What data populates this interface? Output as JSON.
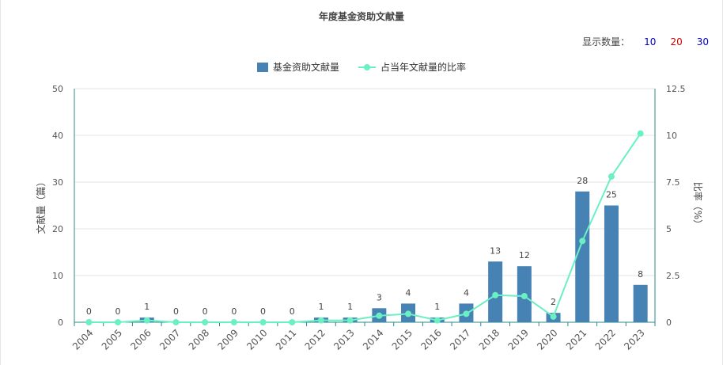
{
  "title": "年度基金资助文献量",
  "count_selector": {
    "label": "显示数量：",
    "options": [
      {
        "label": "10",
        "color": "#0000cc"
      },
      {
        "label": "20",
        "color": "#cc0000"
      },
      {
        "label": "30",
        "color": "#0000cc"
      }
    ]
  },
  "legend": [
    {
      "label": "基金资助文献量",
      "color": "#4682b4"
    },
    {
      "label": "占当年文献量的比率",
      "color": "#6bf0c4"
    }
  ],
  "chart_data": {
    "type": "bar",
    "categories": [
      "2004",
      "2005",
      "2006",
      "2007",
      "2008",
      "2009",
      "2010",
      "2011",
      "2012",
      "2013",
      "2014",
      "2015",
      "2016",
      "2017",
      "2018",
      "2019",
      "2020",
      "2021",
      "2022",
      "2023"
    ],
    "series": [
      {
        "name": "基金资助文献量",
        "type": "bar",
        "axis": "left",
        "color": "#4682b4",
        "values": [
          0,
          0,
          1,
          0,
          0,
          0,
          0,
          0,
          1,
          1,
          3,
          4,
          1,
          4,
          13,
          12,
          2,
          28,
          25,
          8
        ]
      },
      {
        "name": "占当年文献量的比率",
        "type": "line",
        "axis": "right",
        "color": "#6bf0c4",
        "values": [
          0,
          0,
          0.1,
          0,
          0,
          0,
          0,
          0,
          0.1,
          0.1,
          0.35,
          0.45,
          0.1,
          0.45,
          1.45,
          1.4,
          0.3,
          4.35,
          7.8,
          10.1
        ]
      }
    ],
    "y_left": {
      "label": "文献量（篇）",
      "ylim": [
        0,
        50
      ],
      "ticks": [
        "0",
        "10",
        "20",
        "30",
        "40",
        "50"
      ]
    },
    "y_right": {
      "label": "比率（%）",
      "ylim": [
        0,
        12.5
      ],
      "ticks": [
        "0",
        "2.5",
        "5",
        "7.5",
        "10",
        "12.5"
      ]
    },
    "grid": true,
    "legend_position": "top-center"
  }
}
